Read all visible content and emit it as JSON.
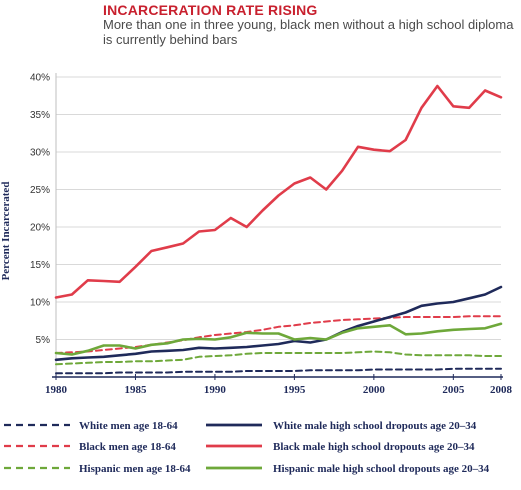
{
  "header": {
    "title": "INCARCERATION RATE RISING",
    "subtitle": "More than one in three young, black men without a high school diploma is currently behind bars"
  },
  "chart_data": {
    "type": "line",
    "title": "INCARCERATION RATE RISING",
    "subtitle": "More than one in three young, black men without a high school diploma is currently behind bars",
    "ylabel": "Percent Incarcerated",
    "xlabel": "",
    "xlim": [
      1980,
      2008
    ],
    "ylim": [
      0,
      40
    ],
    "x_ticks": [
      "1980",
      "1985",
      "1990",
      "1995",
      "2000",
      "2005",
      "2008"
    ],
    "x_tick_values": [
      1980,
      1985,
      1990,
      1995,
      2000,
      2005,
      2008
    ],
    "y_ticks": [
      "5%",
      "10%",
      "15%",
      "20%",
      "25%",
      "30%",
      "35%",
      "40%"
    ],
    "y_tick_values": [
      5,
      10,
      15,
      20,
      25,
      30,
      35,
      40
    ],
    "grid": true,
    "legend_position": "bottom",
    "x": [
      1980,
      1981,
      1982,
      1983,
      1984,
      1985,
      1986,
      1987,
      1988,
      1989,
      1990,
      1991,
      1992,
      1993,
      1994,
      1995,
      1996,
      1997,
      1998,
      1999,
      2000,
      2001,
      2002,
      2003,
      2004,
      2005,
      2006,
      2007,
      2008
    ],
    "series": [
      {
        "name": "White men age 18-64",
        "color": "#1f2a5a",
        "dashed": true,
        "values": [
          0.5,
          0.5,
          0.5,
          0.5,
          0.6,
          0.6,
          0.6,
          0.6,
          0.7,
          0.7,
          0.7,
          0.7,
          0.8,
          0.8,
          0.8,
          0.8,
          0.9,
          0.9,
          0.9,
          0.9,
          1.0,
          1.0,
          1.0,
          1.0,
          1.0,
          1.1,
          1.1,
          1.1,
          1.1
        ]
      },
      {
        "name": "Black men age 18-64",
        "color": "#e03c4a",
        "dashed": true,
        "values": [
          3.2,
          3.3,
          3.4,
          3.6,
          3.8,
          4.0,
          4.3,
          4.6,
          4.9,
          5.3,
          5.6,
          5.8,
          6.0,
          6.3,
          6.7,
          6.9,
          7.2,
          7.4,
          7.6,
          7.7,
          7.8,
          7.9,
          8.0,
          8.0,
          8.0,
          8.0,
          8.1,
          8.1,
          8.1
        ]
      },
      {
        "name": "Hispanic men age 18-64",
        "color": "#6ea83a",
        "dashed": true,
        "values": [
          1.7,
          1.8,
          1.9,
          2.0,
          2.0,
          2.1,
          2.1,
          2.2,
          2.3,
          2.7,
          2.8,
          2.9,
          3.1,
          3.2,
          3.2,
          3.2,
          3.2,
          3.2,
          3.2,
          3.3,
          3.4,
          3.3,
          3.0,
          2.9,
          2.9,
          2.9,
          2.9,
          2.8,
          2.8
        ]
      },
      {
        "name": "White male high school dropouts age 20–34",
        "color": "#1f2a5a",
        "dashed": false,
        "values": [
          2.3,
          2.5,
          2.6,
          2.7,
          2.9,
          3.1,
          3.4,
          3.5,
          3.6,
          3.9,
          3.8,
          3.9,
          4.0,
          4.2,
          4.4,
          4.8,
          4.6,
          5.0,
          6.0,
          6.8,
          7.4,
          8.0,
          8.6,
          9.5,
          9.8,
          10.0,
          10.5,
          11.0,
          12.0
        ]
      },
      {
        "name": "Black male high school dropouts age 20–34",
        "color": "#e03c4a",
        "dashed": false,
        "values": [
          10.6,
          11.0,
          12.9,
          12.8,
          12.7,
          14.7,
          16.8,
          17.3,
          17.8,
          19.4,
          19.6,
          21.2,
          20.0,
          22.2,
          24.2,
          25.8,
          26.6,
          25.0,
          27.5,
          30.7,
          30.3,
          30.1,
          31.6,
          35.9,
          38.8,
          36.1,
          35.9,
          38.2,
          37.3
        ]
      },
      {
        "name": "Hispanic male high school dropouts age 20–34",
        "color": "#6ea83a",
        "dashed": false,
        "values": [
          3.2,
          3.0,
          3.5,
          4.2,
          4.2,
          3.8,
          4.3,
          4.5,
          5.0,
          5.1,
          5.0,
          5.3,
          5.9,
          5.8,
          5.8,
          5.0,
          5.2,
          5.0,
          5.9,
          6.5,
          6.7,
          6.9,
          5.7,
          5.8,
          6.1,
          6.3,
          6.4,
          6.5,
          7.1
        ]
      }
    ]
  }
}
